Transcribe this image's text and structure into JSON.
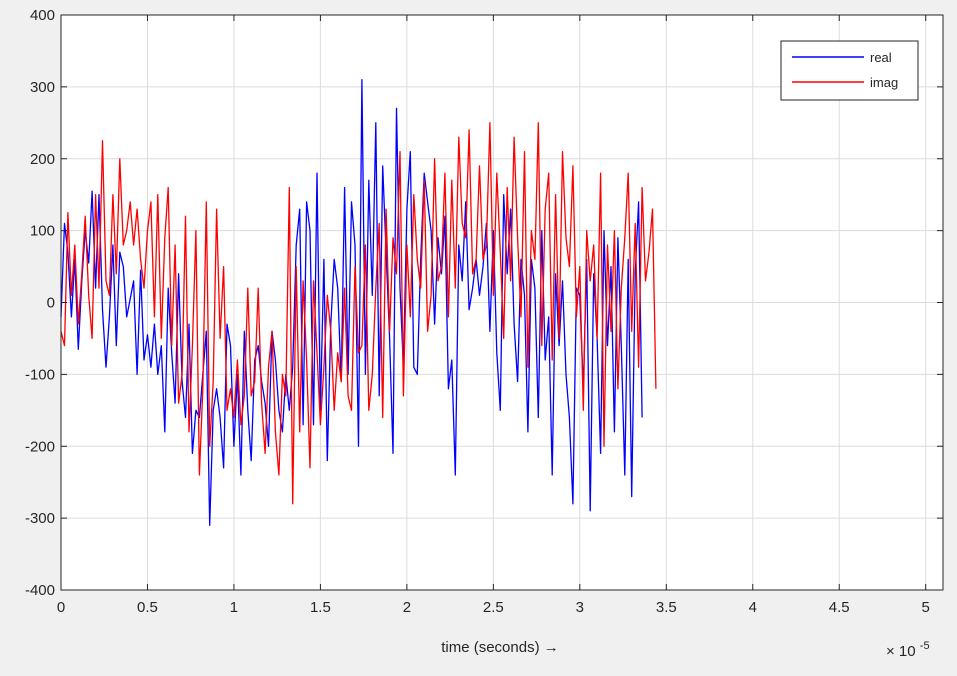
{
  "window": {
    "background": "#f0f0f0",
    "axes_background": "#ffffff",
    "grid_color": "#dcdcdc",
    "axis_color": "#262626"
  },
  "chart_data": {
    "type": "line",
    "title": "",
    "xlabel": "time  (seconds) →",
    "ylabel": "",
    "x_exponent_label": "× 10",
    "x_exponent_power": "-5",
    "xlim": [
      0,
      5.1
    ],
    "ylim": [
      -400,
      400
    ],
    "x_ticks": [
      0,
      0.5,
      1,
      1.5,
      2,
      2.5,
      3,
      3.5,
      4,
      4.5,
      5
    ],
    "x_tick_labels": [
      "0",
      "0.5",
      "1",
      "1.5",
      "2",
      "2.5",
      "3",
      "3.5",
      "4",
      "4.5",
      "5"
    ],
    "y_ticks": [
      -400,
      -300,
      -200,
      -100,
      0,
      100,
      200,
      300,
      400
    ],
    "y_tick_labels": [
      "-400",
      "-300",
      "-200",
      "-100",
      "0",
      "100",
      "200",
      "300",
      "400"
    ],
    "grid": true,
    "legend_position": "top-right",
    "x_start": 0,
    "x_step": 0.02,
    "series": [
      {
        "name": "real",
        "color": "#0000ff",
        "values": [
          -20,
          110,
          70,
          -20,
          60,
          -65,
          30,
          100,
          55,
          155,
          20,
          150,
          -10,
          -90,
          -20,
          80,
          -60,
          70,
          50,
          -20,
          5,
          30,
          -100,
          45,
          -80,
          -45,
          -90,
          -30,
          -100,
          -60,
          -180,
          20,
          -70,
          -140,
          40,
          -110,
          -160,
          -30,
          -210,
          -150,
          -160,
          -100,
          -40,
          -310,
          -150,
          -120,
          -160,
          -230,
          -30,
          -60,
          -200,
          -100,
          -240,
          -40,
          -150,
          -220,
          -80,
          -60,
          -110,
          -140,
          -200,
          -40,
          -80,
          -150,
          -180,
          -100,
          -150,
          -90,
          80,
          130,
          -170,
          140,
          100,
          -170,
          180,
          -150,
          60,
          -220,
          -30,
          60,
          20,
          -110,
          160,
          -100,
          140,
          80,
          -200,
          310,
          -100,
          170,
          10,
          250,
          -130,
          190,
          70,
          -50,
          -210,
          270,
          20,
          -90,
          130,
          210,
          -90,
          -100,
          60,
          180,
          140,
          100,
          -30,
          90,
          40,
          120,
          -120,
          -80,
          -240,
          80,
          30,
          140,
          -10,
          20,
          60,
          10,
          50,
          110,
          -40,
          100,
          -70,
          -150,
          150,
          40,
          130,
          -30,
          -110,
          60,
          10,
          -180,
          60,
          20,
          -160,
          100,
          -80,
          -20,
          -240,
          40,
          -60,
          30,
          -100,
          -160,
          -280,
          20,
          10,
          -120,
          60,
          -290,
          40,
          -50,
          -210,
          100,
          -60,
          50,
          -180,
          90,
          -60,
          -240,
          60,
          -270,
          40,
          140,
          -160
        ]
      },
      {
        "name": "imag",
        "color": "#ff0000",
        "values": [
          -40,
          -60,
          125,
          10,
          80,
          -30,
          40,
          120,
          10,
          -50,
          150,
          20,
          225,
          30,
          10,
          150,
          40,
          200,
          80,
          100,
          140,
          80,
          130,
          60,
          20,
          100,
          140,
          -20,
          150,
          -50,
          90,
          160,
          -60,
          80,
          -140,
          -100,
          120,
          -180,
          -60,
          100,
          -240,
          -120,
          140,
          -200,
          -110,
          130,
          -50,
          50,
          -150,
          -120,
          -160,
          -80,
          -170,
          -130,
          20,
          -130,
          -110,
          20,
          -140,
          -210,
          -90,
          -40,
          -180,
          -240,
          -100,
          -130,
          160,
          -280,
          50,
          -180,
          30,
          -80,
          -230,
          30,
          -70,
          -170,
          -90,
          10,
          -40,
          -150,
          -70,
          -110,
          20,
          -130,
          -150,
          50,
          -70,
          -60,
          80,
          -150,
          -100,
          20,
          110,
          -160,
          130,
          -40,
          90,
          40,
          210,
          -130,
          80,
          -20,
          150,
          60,
          20,
          170,
          -40,
          10,
          200,
          30,
          50,
          180,
          -20,
          170,
          20,
          230,
          110,
          90,
          240,
          40,
          60,
          190,
          60,
          80,
          250,
          10,
          180,
          70,
          -50,
          160,
          30,
          230,
          90,
          -20,
          210,
          -90,
          100,
          60,
          250,
          -60,
          130,
          180,
          -80,
          150,
          -50,
          210,
          90,
          50,
          190,
          -20,
          50,
          -150,
          100,
          30,
          80,
          -50,
          180,
          -200,
          80,
          -40,
          100,
          -120,
          20,
          90,
          180,
          -40,
          110,
          -90,
          160,
          30,
          70,
          130,
          -120
        ]
      }
    ]
  }
}
